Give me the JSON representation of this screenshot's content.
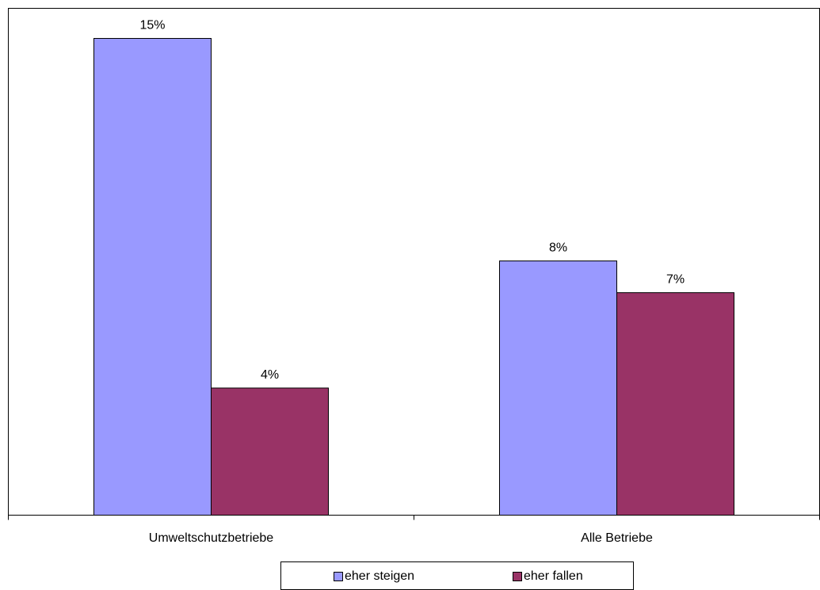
{
  "chart_data": {
    "type": "bar",
    "categories": [
      "Umweltschutzbetriebe",
      "Alle Betriebe"
    ],
    "series": [
      {
        "name": "eher steigen",
        "values": [
          15,
          8
        ],
        "labels": [
          "15%",
          "8%"
        ],
        "color": "#9999FF"
      },
      {
        "name": "eher fallen",
        "values": [
          4,
          7
        ],
        "labels": [
          "4%",
          "7%"
        ],
        "color": "#993366"
      }
    ],
    "ylim": [
      0,
      16
    ],
    "grid": false,
    "legend_position": "bottom"
  }
}
